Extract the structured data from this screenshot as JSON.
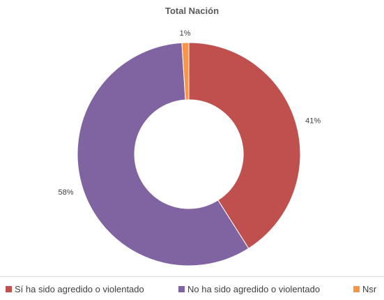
{
  "chart_data": {
    "type": "pie",
    "title": "Total Nación",
    "categories": [
      "Sí ha sido agredido o violentado",
      "No ha sido agredido o violentado",
      "Nsr"
    ],
    "values": [
      41,
      58,
      1
    ],
    "labels": [
      "41%",
      "58%",
      "1%"
    ],
    "colors": [
      "#c0504d",
      "#8064a2",
      "#f79646"
    ],
    "legend_position": "bottom",
    "style": "donut"
  }
}
